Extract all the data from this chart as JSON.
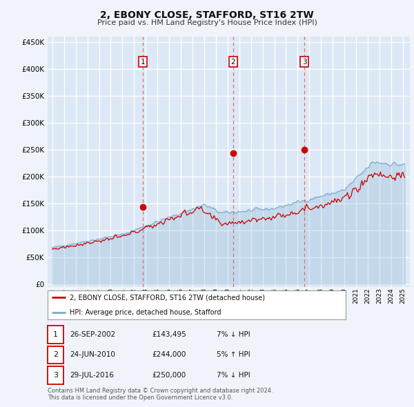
{
  "title": "2, EBONY CLOSE, STAFFORD, ST16 2TW",
  "subtitle": "Price paid vs. HM Land Registry's House Price Index (HPI)",
  "yticks": [
    0,
    50000,
    100000,
    150000,
    200000,
    250000,
    300000,
    350000,
    400000,
    450000
  ],
  "sale_dates": [
    2002.74,
    2010.48,
    2016.57
  ],
  "sale_prices": [
    143495,
    244000,
    250000
  ],
  "sale_labels": [
    "1",
    "2",
    "3"
  ],
  "legend_red_label": "2, EBONY CLOSE, STAFFORD, ST16 2TW (detached house)",
  "legend_blue_label": "HPI: Average price, detached house, Stafford",
  "table_rows": [
    [
      "1",
      "26-SEP-2002",
      "£143,495",
      "7% ↓ HPI"
    ],
    [
      "2",
      "24-JUN-2010",
      "£244,000",
      "5% ↑ HPI"
    ],
    [
      "3",
      "29-JUL-2016",
      "£250,000",
      "7% ↓ HPI"
    ]
  ],
  "footnote": "Contains HM Land Registry data © Crown copyright and database right 2024.\nThis data is licensed under the Open Government Licence v3.0.",
  "background_color": "#f0f4fa",
  "plot_background": "#dce8f5",
  "grid_color": "#ffffff",
  "red_line_color": "#cc0000",
  "blue_line_color": "#7aaad0",
  "dashed_line_color": "#e06060",
  "dot_color": "#cc0000"
}
